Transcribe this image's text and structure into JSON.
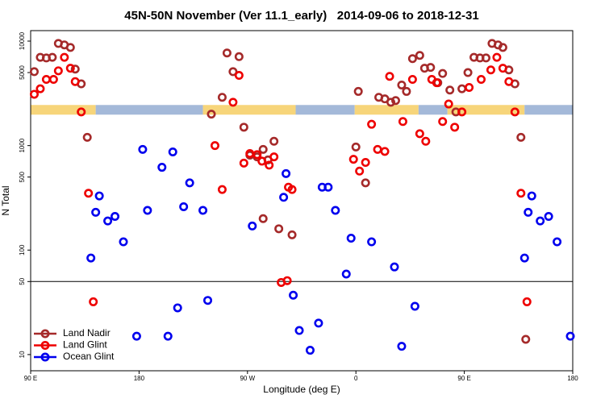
{
  "chart_data": {
    "type": "scatter",
    "title": "45N-50N November (Ver 11.1_early)   2014-09-06 to 2018-12-31",
    "x_label": "Longitude (deg E)",
    "y_label": "N Total",
    "xlim": [
      -270,
      180
    ],
    "xticks": [
      {
        "value": -270,
        "label": "90 E"
      },
      {
        "value": -180,
        "label": "180"
      },
      {
        "value": -90,
        "label": "90 W"
      },
      0,
      {
        "value": 90,
        "label": "90 E"
      },
      180
    ],
    "ylim": [
      7,
      12600
    ],
    "yticks": [
      10,
      50,
      100,
      500,
      1000,
      5000,
      10000
    ],
    "y_log": true,
    "hline": 50,
    "legend": "bottom left",
    "band": {
      "value": 2200,
      "segments": [
        {
          "start": -270,
          "end": -216,
          "color": "#f7d57a"
        },
        {
          "start": -216,
          "end": -127,
          "color": "#a4b9d9"
        },
        {
          "start": -127,
          "end": -50,
          "color": "#f7d57a"
        },
        {
          "start": -50,
          "end": -1,
          "color": "#a4b9d9"
        },
        {
          "start": -1,
          "end": 52,
          "color": "#f7d57a"
        },
        {
          "start": 52,
          "end": 76,
          "color": "#a4b9d9"
        },
        {
          "start": 76,
          "end": 140,
          "color": "#f7d57a"
        },
        {
          "start": 140,
          "end": 180,
          "color": "#a4b9d9"
        }
      ]
    },
    "series": [
      {
        "name": "Land Nadir",
        "color": "#a52a2a",
        "x": [
          -267,
          -262,
          -257,
          -252,
          -247,
          -242,
          -237,
          -233,
          -228,
          -223,
          -120,
          -111,
          -107,
          -102,
          -97,
          -93,
          -88,
          -82,
          -77,
          -73,
          -77,
          -68,
          -64,
          -53,
          0,
          2,
          8,
          19,
          24,
          29,
          33,
          38,
          42,
          47,
          53,
          57,
          62,
          68,
          72,
          78,
          83,
          88,
          93,
          98,
          103,
          108,
          113,
          118,
          122,
          127,
          132,
          137,
          141
        ],
        "values": [
          5100,
          7000,
          6900,
          7000,
          9500,
          9200,
          8700,
          5400,
          3900,
          1200,
          2000,
          2900,
          7700,
          5100,
          7100,
          1500,
          810,
          780,
          920,
          730,
          200,
          1100,
          160,
          140,
          970,
          3300,
          440,
          2900,
          2800,
          2600,
          2700,
          3800,
          3300,
          6800,
          7300,
          5500,
          5600,
          4000,
          4900,
          3400,
          2100,
          3500,
          5000,
          7000,
          6900,
          6900,
          9500,
          9200,
          8700,
          5300,
          3900,
          1200,
          14
        ]
      },
      {
        "name": "Land Glint",
        "color": "#ee0000",
        "x": [
          -267,
          -262,
          -257,
          -251,
          -247,
          -242,
          -237,
          -233,
          -228,
          -222,
          -218,
          -117,
          -111,
          -102,
          -97,
          -93,
          -88,
          -82,
          -78,
          -72,
          -68,
          -62,
          -57,
          -56,
          -53,
          -2,
          3,
          8,
          13,
          18,
          24,
          28,
          39,
          47,
          53,
          58,
          63,
          67,
          72,
          77,
          82,
          88,
          94,
          104,
          112,
          117,
          122,
          127,
          132,
          137,
          142
        ],
        "values": [
          3100,
          3500,
          4300,
          4300,
          5200,
          7000,
          5500,
          4100,
          2100,
          350,
          32,
          1000,
          380,
          2600,
          4700,
          680,
          840,
          820,
          710,
          650,
          780,
          49,
          51,
          400,
          380,
          740,
          570,
          690,
          1600,
          920,
          880,
          4600,
          1700,
          4300,
          1300,
          1100,
          4300,
          4000,
          1700,
          2500,
          1500,
          2100,
          3600,
          4300,
          5300,
          7000,
          5500,
          4100,
          2100,
          350,
          32
        ]
      },
      {
        "name": "Ocean Glint",
        "color": "#0000ee",
        "x": [
          -220,
          -216,
          -213,
          -206,
          -200,
          -193,
          -182,
          -177,
          -173,
          -161,
          -156,
          -152,
          -148,
          -143,
          -138,
          -127,
          -123,
          -86,
          -60,
          -58,
          -52,
          -47,
          -38,
          -31,
          -28,
          -23,
          -17,
          -8,
          -4,
          13,
          32,
          38,
          49,
          140,
          143,
          146,
          153,
          160,
          167,
          178
        ],
        "values": [
          84,
          230,
          330,
          190,
          210,
          120,
          15,
          920,
          240,
          620,
          15,
          870,
          28,
          260,
          440,
          240,
          33,
          170,
          320,
          540,
          37,
          17,
          11,
          20,
          400,
          400,
          240,
          59,
          130,
          120,
          69,
          12,
          29,
          84,
          230,
          330,
          190,
          210,
          120,
          15
        ]
      }
    ]
  }
}
